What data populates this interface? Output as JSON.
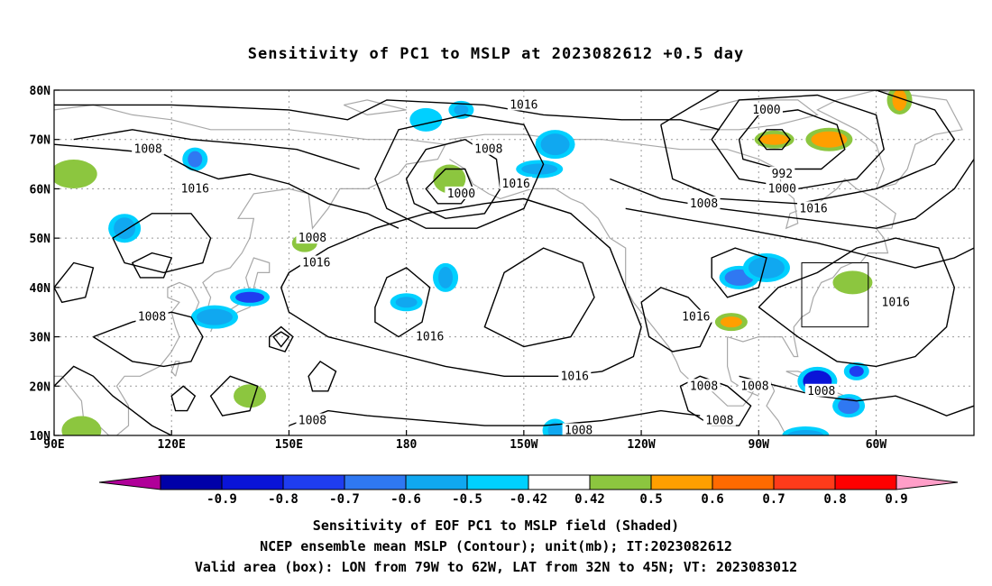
{
  "title": "Sensitivity of PC1 to MSLP at 2023082612 +0.5 day",
  "lat_labels": [
    "80N",
    "70N",
    "60N",
    "50N",
    "40N",
    "30N",
    "20N",
    "10N"
  ],
  "lon_labels": [
    "90E",
    "120E",
    "150E",
    "180",
    "150W",
    "120W",
    "90W",
    "60W"
  ],
  "contour_labels": [
    {
      "text": "1016",
      "lon": -150,
      "lat": 77
    },
    {
      "text": "1008",
      "lon": -159,
      "lat": 68
    },
    {
      "text": "1016",
      "lon": -152,
      "lat": 61
    },
    {
      "text": "1000",
      "lon": -166,
      "lat": 59
    },
    {
      "text": "1008",
      "lon": 114,
      "lat": 68
    },
    {
      "text": "1016",
      "lon": 126,
      "lat": 60
    },
    {
      "text": "1008",
      "lon": 156,
      "lat": 50
    },
    {
      "text": "1016",
      "lon": 157,
      "lat": 45
    },
    {
      "text": "1008",
      "lon": 115,
      "lat": 34
    },
    {
      "text": "1016",
      "lon": -174,
      "lat": 30
    },
    {
      "text": "1016",
      "lon": -137,
      "lat": 22
    },
    {
      "text": "1008",
      "lon": 156,
      "lat": 13
    },
    {
      "text": "1008",
      "lon": -136,
      "lat": 11
    },
    {
      "text": "1008",
      "lon": -104,
      "lat": 20
    },
    {
      "text": "1008",
      "lon": -91,
      "lat": 20
    },
    {
      "text": "1008",
      "lon": -100,
      "lat": 13
    },
    {
      "text": "1016",
      "lon": -106,
      "lat": 34
    },
    {
      "text": "1008",
      "lon": -104,
      "lat": 57
    },
    {
      "text": "1016",
      "lon": -76,
      "lat": 56
    },
    {
      "text": "1000",
      "lon": -88,
      "lat": 76
    },
    {
      "text": "992",
      "lon": -84,
      "lat": 63
    },
    {
      "text": "1000",
      "lon": -84,
      "lat": 60
    },
    {
      "text": "1016",
      "lon": -55,
      "lat": 37
    },
    {
      "text": "1008",
      "lon": -74,
      "lat": 19
    }
  ],
  "valid_box": {
    "lon_min": -79,
    "lon_max": -62,
    "lat_min": 32,
    "lat_max": 45
  },
  "colorbar": {
    "labels": [
      "-0.9",
      "-0.8",
      "-0.7",
      "-0.6",
      "-0.5",
      "-0.42",
      "0.42",
      "0.5",
      "0.6",
      "0.7",
      "0.8",
      "0.9"
    ],
    "colors": [
      "#b00099",
      "#0000a8",
      "#0a14d8",
      "#1f3df0",
      "#2f78f2",
      "#10a8f0",
      "#00d0ff",
      "#ffffff",
      "#8cc63f",
      "#ff9f00",
      "#ff6a00",
      "#ff3b1a",
      "#ff0000",
      "#ff9ec8"
    ]
  },
  "shaded_areas": [
    {
      "lon": -166,
      "lat": 76,
      "value": -0.5
    },
    {
      "lon": -175,
      "lat": 74,
      "value": -0.42
    },
    {
      "lon": -142,
      "lat": 69,
      "value": -0.5
    },
    {
      "lon": -146,
      "lat": 64,
      "value": -0.5
    },
    {
      "lon": 126,
      "lat": 66,
      "value": -0.6
    },
    {
      "lon": 108,
      "lat": 52,
      "value": -0.5
    },
    {
      "lon": 140,
      "lat": 38,
      "value": -0.7
    },
    {
      "lon": 131,
      "lat": 34,
      "value": -0.5
    },
    {
      "lon": -170,
      "lat": 42,
      "value": -0.5
    },
    {
      "lon": -180,
      "lat": 37,
      "value": -0.5
    },
    {
      "lon": -95,
      "lat": 42,
      "value": -0.6
    },
    {
      "lon": -88,
      "lat": 44,
      "value": -0.5
    },
    {
      "lon": -65,
      "lat": 23,
      "value": -0.7
    },
    {
      "lon": -67,
      "lat": 16,
      "value": -0.6
    },
    {
      "lon": -75,
      "lat": 21,
      "value": -0.8
    },
    {
      "lon": -78,
      "lat": 10,
      "value": -0.5
    },
    {
      "lon": -142,
      "lat": 11,
      "value": -0.5
    },
    {
      "lon": -169,
      "lat": 62,
      "value": 0.5
    },
    {
      "lon": -86,
      "lat": 70,
      "value": 0.6
    },
    {
      "lon": -72,
      "lat": 70,
      "value": 0.6
    },
    {
      "lon": -54,
      "lat": 78,
      "value": 0.6
    },
    {
      "lon": -97,
      "lat": 33,
      "value": 0.6
    },
    {
      "lon": -66,
      "lat": 41,
      "value": 0.5
    },
    {
      "lon": 95,
      "lat": 63,
      "value": 0.5
    },
    {
      "lon": 154,
      "lat": 49,
      "value": 0.5
    },
    {
      "lon": 140,
      "lat": 18,
      "value": 0.5
    },
    {
      "lon": 97,
      "lat": 11,
      "value": 0.5
    }
  ],
  "captions": [
    "Sensitivity of EOF PC1 to MSLP field (Shaded)",
    "NCEP ensemble mean MSLP (Contour); unit(mb); IT:2023082612",
    "Valid area (box): LON from 79W to 62W, LAT from 32N to 45N; VT: 2023083012"
  ]
}
